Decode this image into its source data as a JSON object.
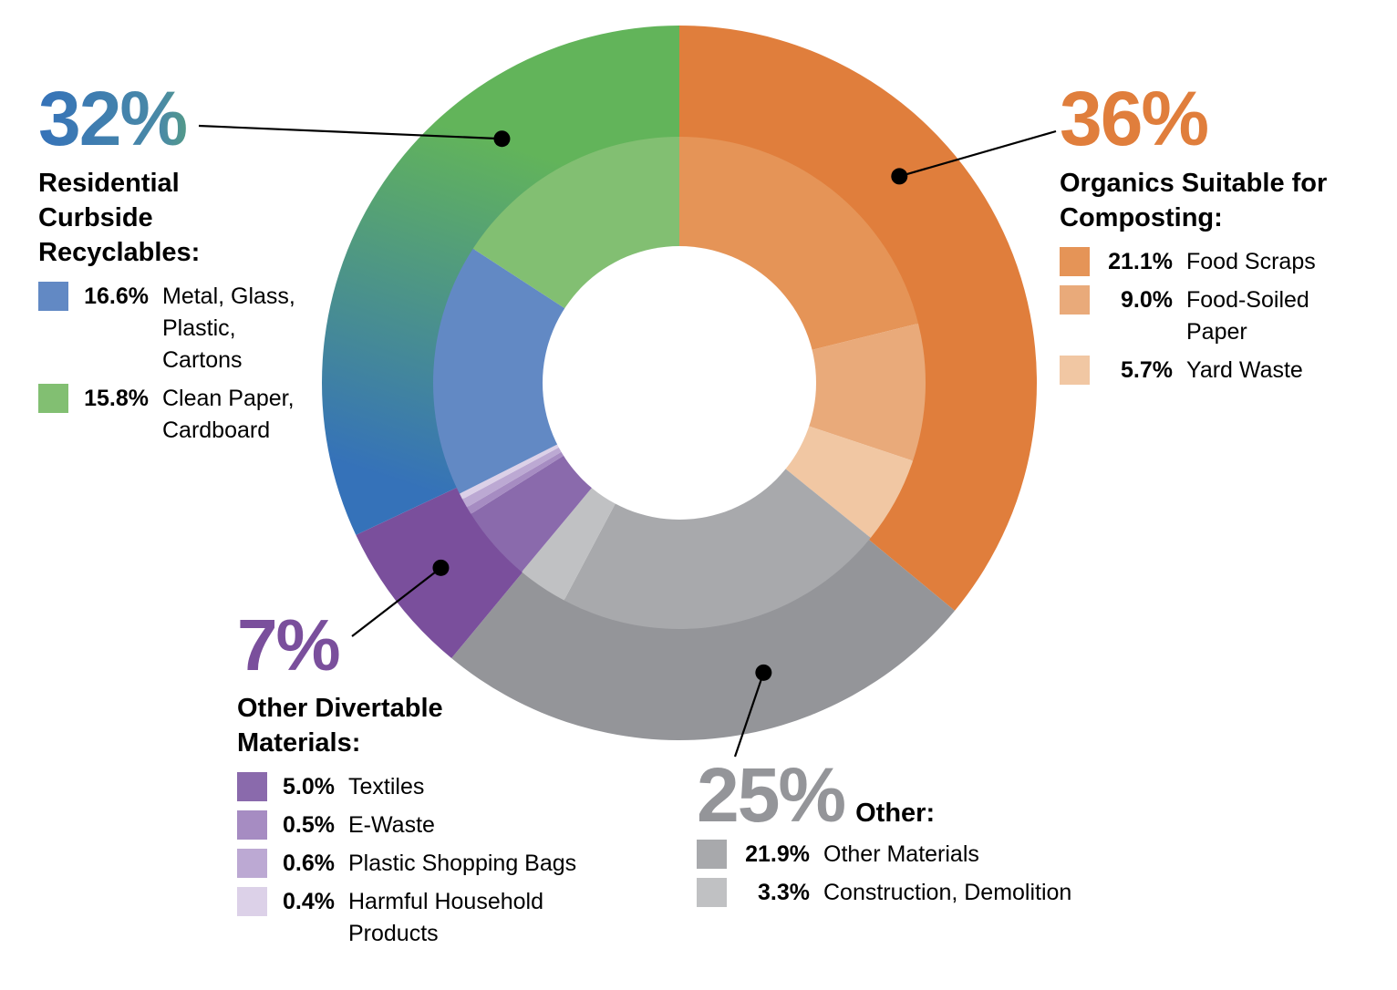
{
  "chart_data": {
    "type": "donut",
    "title": "",
    "colors": {
      "organics_outer": "#e07e3c",
      "residential_outer_top": "#62b45a",
      "residential_outer_bottom": "#3572b9",
      "divertable_outer": "#7a4f9c",
      "other_outer": "#949599"
    },
    "groups": [
      {
        "id": "organics",
        "percent_label": "36%",
        "value": 36,
        "heading": "Organics Suitable for Composting:",
        "color": "#e07e3c",
        "items": [
          {
            "percent_label": "21.1%",
            "value": 21.1,
            "label": "Food Scraps",
            "color": "#e59457"
          },
          {
            "percent_label": "9.0%",
            "value": 9.0,
            "label": "Food-Soiled Paper",
            "color": "#e9aa7a"
          },
          {
            "percent_label": "5.7%",
            "value": 5.7,
            "label": "Yard Waste",
            "color": "#f1c7a3"
          }
        ]
      },
      {
        "id": "other",
        "percent_label": "25%",
        "value": 25,
        "heading": "Other:",
        "color": "#949599",
        "items": [
          {
            "percent_label": "21.9%",
            "value": 21.9,
            "label": "Other Materials",
            "color": "#a8a9ac"
          },
          {
            "percent_label": "3.3%",
            "value": 3.3,
            "label": "Construction, Demolition",
            "color": "#c0c1c3"
          }
        ]
      },
      {
        "id": "divertable",
        "percent_label": "7%",
        "value": 7,
        "heading": "Other Divertable Materials:",
        "color": "#7a4f9c",
        "items": [
          {
            "percent_label": "5.0%",
            "value": 5.0,
            "label": "Textiles",
            "color": "#8a6aac"
          },
          {
            "percent_label": "0.5%",
            "value": 0.5,
            "label": "E-Waste",
            "color": "#a68cc2"
          },
          {
            "percent_label": "0.6%",
            "value": 0.6,
            "label": "Plastic Shopping Bags",
            "color": "#bca9d3"
          },
          {
            "percent_label": "0.4%",
            "value": 0.4,
            "label": "Harmful Household Products",
            "color": "#dcd1e8"
          }
        ]
      },
      {
        "id": "residential",
        "percent_label": "32%",
        "value": 32,
        "heading": "Residential Curbside Recyclables:",
        "color": "#62b45a",
        "items": [
          {
            "percent_label": "16.6%",
            "value": 16.6,
            "label": "Metal, Glass, Plastic, Cartons",
            "color": "#6289c4"
          },
          {
            "percent_label": "15.8%",
            "value": 15.8,
            "label": "Clean Paper, Cardboard",
            "color": "#82bf72"
          }
        ]
      }
    ]
  }
}
